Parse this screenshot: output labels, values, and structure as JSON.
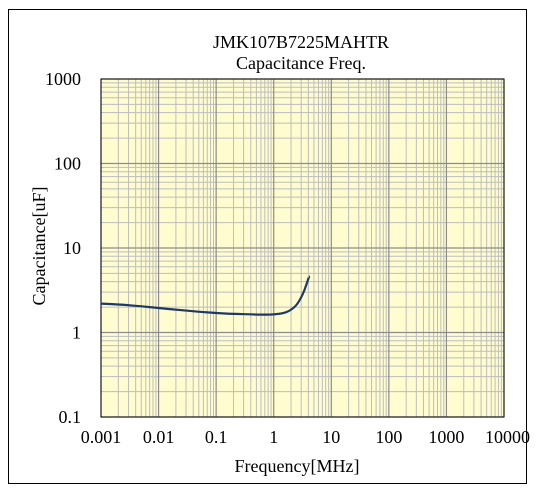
{
  "chart_data": {
    "type": "line",
    "title": "JMK107B7225MAHTR",
    "subtitle": "Capacitance Freq.",
    "xlabel": "Frequency[MHz]",
    "ylabel": "Capacitance[uF]",
    "x_scale": "log",
    "y_scale": "log",
    "xlim": [
      0.001,
      10000
    ],
    "ylim": [
      0.1,
      1000
    ],
    "x_ticks": [
      "0.001",
      "0.01",
      "0.1",
      "1",
      "10",
      "100",
      "1000",
      "10000"
    ],
    "y_ticks": [
      "0.1",
      "1",
      "10",
      "100",
      "1000"
    ],
    "grid": true,
    "legend": "none",
    "colors": {
      "plot_background": "#fffdd0",
      "grid": "#bdbdbd",
      "line": "#1f3864"
    },
    "series": [
      {
        "x": [
          0.001,
          0.002,
          0.005,
          0.01,
          0.02,
          0.05,
          0.1,
          0.2,
          0.5,
          0.8,
          1.0,
          1.2,
          1.5,
          1.8,
          2.0,
          2.3,
          2.6,
          3.0,
          3.3,
          3.6,
          3.9,
          4.1
        ],
        "y": [
          2.2,
          2.15,
          2.05,
          1.95,
          1.86,
          1.76,
          1.7,
          1.66,
          1.63,
          1.63,
          1.64,
          1.66,
          1.7,
          1.78,
          1.86,
          2.0,
          2.2,
          2.6,
          3.0,
          3.5,
          4.1,
          4.6
        ]
      }
    ]
  }
}
